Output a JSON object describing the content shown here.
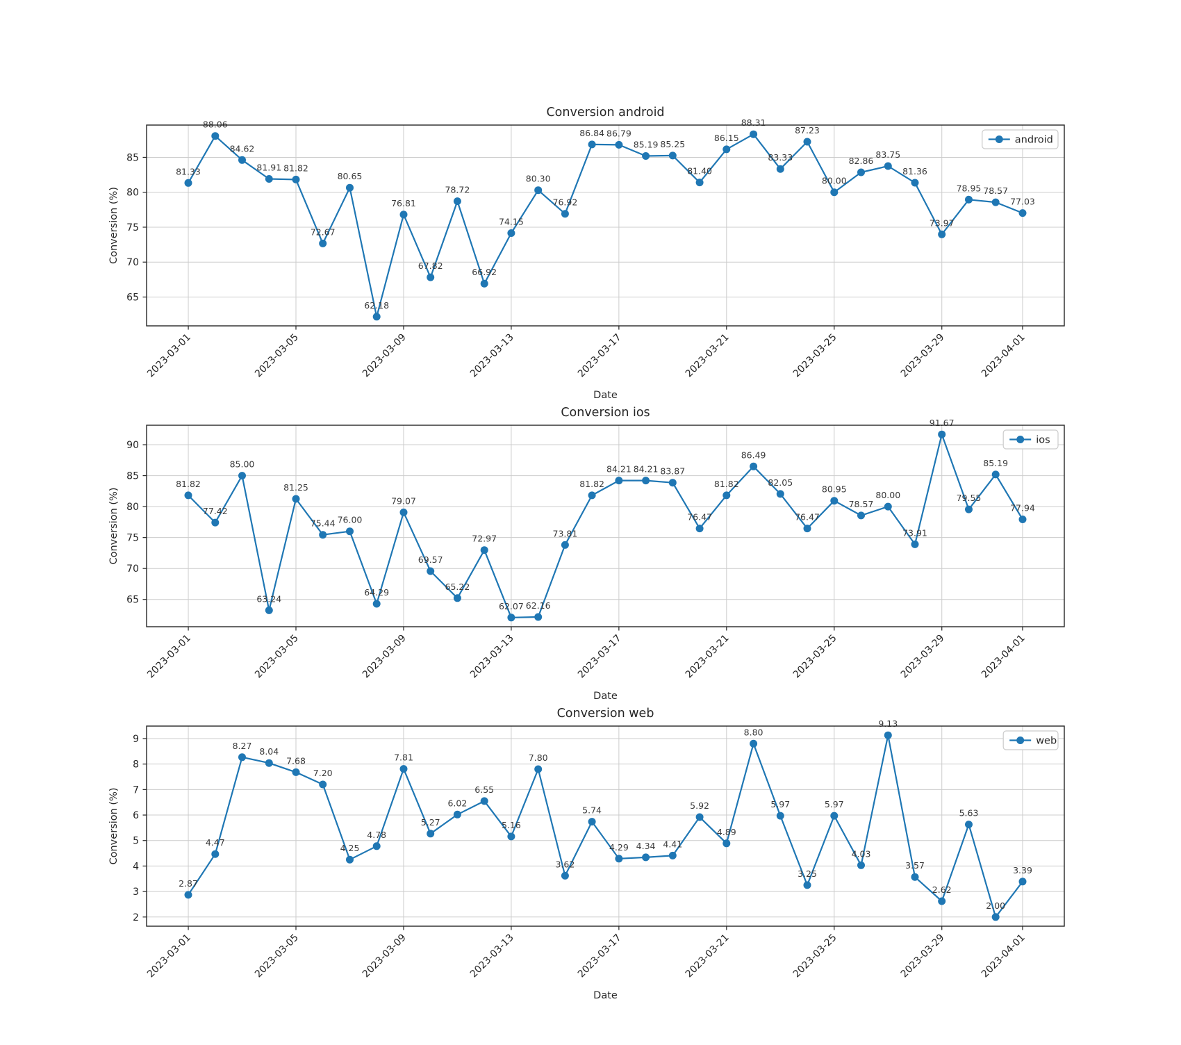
{
  "figure": {
    "background": "#ffffff",
    "accent_color": "#1f77b4",
    "text_color": "#262626",
    "annotation_color": "#3a3a3a",
    "grid_color": "#cccccc",
    "spine_color": "#262626"
  },
  "chart_data": [
    {
      "type": "line",
      "title": "Conversion android",
      "xlabel": "Date",
      "ylabel": "Conversion (%)",
      "legend": [
        "android"
      ],
      "legend_position": "upper right",
      "grid": true,
      "point_labels": true,
      "x": [
        "2023-03-01",
        "2023-03-02",
        "2023-03-03",
        "2023-03-04",
        "2023-03-05",
        "2023-03-06",
        "2023-03-07",
        "2023-03-08",
        "2023-03-09",
        "2023-03-10",
        "2023-03-11",
        "2023-03-12",
        "2023-03-13",
        "2023-03-14",
        "2023-03-15",
        "2023-03-16",
        "2023-03-17",
        "2023-03-18",
        "2023-03-19",
        "2023-03-20",
        "2023-03-21",
        "2023-03-22",
        "2023-03-23",
        "2023-03-24",
        "2023-03-25",
        "2023-03-26",
        "2023-03-27",
        "2023-03-28",
        "2023-03-29",
        "2023-03-30",
        "2023-03-31",
        "2023-04-01"
      ],
      "xtick_labels": [
        "2023-03-01",
        "2023-03-05",
        "2023-03-09",
        "2023-03-13",
        "2023-03-17",
        "2023-03-21",
        "2023-03-25",
        "2023-03-29",
        "2023-04-01"
      ],
      "xtick_indices": [
        0,
        4,
        8,
        12,
        16,
        20,
        24,
        28,
        31
      ],
      "yticks": [
        65,
        70,
        75,
        80,
        85
      ],
      "ylim": [
        60.87,
        89.62
      ],
      "series": [
        {
          "name": "android",
          "values": [
            81.33,
            88.06,
            84.62,
            81.91,
            81.82,
            72.67,
            80.65,
            62.18,
            76.81,
            67.82,
            78.72,
            66.92,
            74.15,
            80.3,
            76.92,
            86.84,
            86.79,
            85.19,
            85.25,
            81.4,
            86.15,
            88.31,
            83.33,
            87.23,
            80.0,
            82.86,
            83.75,
            81.36,
            73.97,
            78.95,
            78.57,
            77.03
          ]
        }
      ]
    },
    {
      "type": "line",
      "title": "Conversion ios",
      "xlabel": "Date",
      "ylabel": "Conversion (%)",
      "legend": [
        "ios"
      ],
      "legend_position": "upper right",
      "grid": true,
      "point_labels": true,
      "x": [
        "2023-03-01",
        "2023-03-02",
        "2023-03-03",
        "2023-03-04",
        "2023-03-05",
        "2023-03-06",
        "2023-03-07",
        "2023-03-08",
        "2023-03-09",
        "2023-03-10",
        "2023-03-11",
        "2023-03-12",
        "2023-03-13",
        "2023-03-14",
        "2023-03-15",
        "2023-03-16",
        "2023-03-17",
        "2023-03-18",
        "2023-03-19",
        "2023-03-20",
        "2023-03-21",
        "2023-03-22",
        "2023-03-23",
        "2023-03-24",
        "2023-03-25",
        "2023-03-26",
        "2023-03-27",
        "2023-03-28",
        "2023-03-29",
        "2023-03-30",
        "2023-03-31",
        "2023-04-01"
      ],
      "xtick_labels": [
        "2023-03-01",
        "2023-03-05",
        "2023-03-09",
        "2023-03-13",
        "2023-03-17",
        "2023-03-21",
        "2023-03-25",
        "2023-03-29",
        "2023-04-01"
      ],
      "xtick_indices": [
        0,
        4,
        8,
        12,
        16,
        20,
        24,
        28,
        31
      ],
      "yticks": [
        65,
        70,
        75,
        80,
        85,
        90
      ],
      "ylim": [
        60.59,
        93.15
      ],
      "series": [
        {
          "name": "ios",
          "values": [
            81.82,
            77.42,
            85.0,
            63.24,
            81.25,
            75.44,
            76.0,
            64.29,
            79.07,
            69.57,
            65.22,
            72.97,
            62.07,
            62.16,
            73.81,
            81.82,
            84.21,
            84.21,
            83.87,
            76.47,
            81.82,
            86.49,
            82.05,
            76.47,
            80.95,
            78.57,
            80.0,
            73.91,
            91.67,
            79.55,
            85.19,
            77.94
          ]
        }
      ]
    },
    {
      "type": "line",
      "title": "Conversion web",
      "xlabel": "Date",
      "ylabel": "Conversion (%)",
      "legend": [
        "web"
      ],
      "legend_position": "upper right",
      "grid": true,
      "point_labels": true,
      "x": [
        "2023-03-01",
        "2023-03-02",
        "2023-03-03",
        "2023-03-04",
        "2023-03-05",
        "2023-03-06",
        "2023-03-07",
        "2023-03-08",
        "2023-03-09",
        "2023-03-10",
        "2023-03-11",
        "2023-03-12",
        "2023-03-13",
        "2023-03-14",
        "2023-03-15",
        "2023-03-16",
        "2023-03-17",
        "2023-03-18",
        "2023-03-19",
        "2023-03-20",
        "2023-03-21",
        "2023-03-22",
        "2023-03-23",
        "2023-03-24",
        "2023-03-25",
        "2023-03-26",
        "2023-03-27",
        "2023-03-28",
        "2023-03-29",
        "2023-03-30",
        "2023-03-31",
        "2023-04-01"
      ],
      "xtick_labels": [
        "2023-03-01",
        "2023-03-05",
        "2023-03-09",
        "2023-03-13",
        "2023-03-17",
        "2023-03-21",
        "2023-03-25",
        "2023-03-29",
        "2023-04-01"
      ],
      "xtick_indices": [
        0,
        4,
        8,
        12,
        16,
        20,
        24,
        28,
        31
      ],
      "yticks": [
        2,
        3,
        4,
        5,
        6,
        7,
        8,
        9
      ],
      "ylim": [
        1.64,
        9.49
      ],
      "series": [
        {
          "name": "web",
          "values": [
            2.87,
            4.47,
            8.27,
            8.04,
            7.68,
            7.2,
            4.25,
            4.78,
            7.81,
            5.27,
            6.02,
            6.55,
            5.16,
            7.8,
            3.62,
            5.74,
            4.29,
            4.34,
            4.41,
            5.92,
            4.89,
            8.8,
            5.97,
            3.25,
            5.97,
            4.03,
            9.13,
            3.57,
            2.62,
            5.63,
            2.0,
            3.39
          ]
        }
      ]
    }
  ]
}
